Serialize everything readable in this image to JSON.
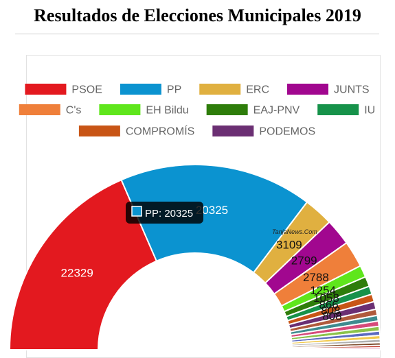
{
  "title": "Resultados de Elecciones Municipales 2019",
  "watermark": "TanjaNews.Com",
  "tooltip": {
    "series": "PP",
    "value": 20325
  },
  "chart_data": {
    "type": "pie",
    "variant": "semicircle-doughnut",
    "legend_position": "top",
    "legend": [
      "PSOE",
      "PP",
      "ERC",
      "JUNTS",
      "C's",
      "EH Bildu",
      "EAJ-PNV",
      "IU",
      "COMPROMÍS",
      "PODEMOS"
    ],
    "slices": [
      {
        "label": "PSOE",
        "value": 22329,
        "color": "#e3191f"
      },
      {
        "label": "PP",
        "value": 20325,
        "color": "#0b93d0"
      },
      {
        "label": "ERC",
        "value": 3109,
        "color": "#e0b040"
      },
      {
        "label": "JUNTS",
        "value": 2799,
        "color": "#a1078f"
      },
      {
        "label": "C's",
        "value": 2788,
        "color": "#ef7f3a"
      },
      {
        "label": "EH Bildu",
        "value": 1254,
        "color": "#5fe61c"
      },
      {
        "label": "EAJ-PNV",
        "value": 1058,
        "color": "#2e7d0a"
      },
      {
        "label": "IU",
        "value": 866,
        "color": "#16924a"
      },
      {
        "label": "COMPROMÍS",
        "value": 808,
        "color": "#c85516"
      },
      {
        "label": "PODEMOS",
        "value": 808,
        "color": "#6b2f73"
      },
      {
        "label": "",
        "value": 650,
        "color": "#b05a3c"
      },
      {
        "label": "",
        "value": 600,
        "color": "#3d8b8f"
      },
      {
        "label": "",
        "value": 550,
        "color": "#d64a7a"
      },
      {
        "label": "",
        "value": 500,
        "color": "#8bc34a"
      },
      {
        "label": "",
        "value": 450,
        "color": "#5c6bc0"
      },
      {
        "label": "",
        "value": 400,
        "color": "#f2c94c"
      },
      {
        "label": "",
        "value": 350,
        "color": "#b0b0b0"
      },
      {
        "label": "",
        "value": 300,
        "color": "#7b4a2a"
      },
      {
        "label": "",
        "value": 250,
        "color": "#c0392b"
      },
      {
        "label": "",
        "value": 200,
        "color": "#e6a0c0"
      }
    ]
  }
}
